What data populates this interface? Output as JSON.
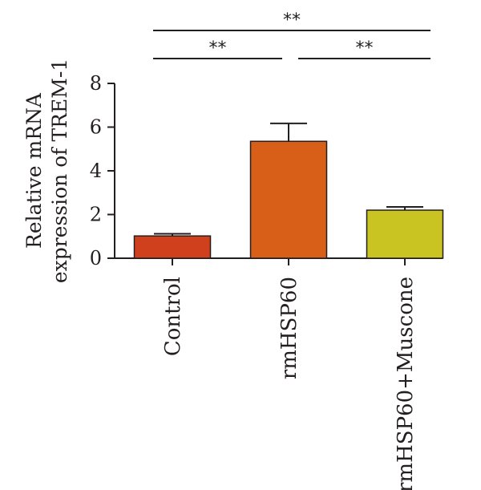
{
  "chart_data": {
    "type": "bar",
    "title": "",
    "xlabel": "",
    "ylabel": [
      "Relative mRNA",
      "expression of TREM-1"
    ],
    "ylim": [
      0,
      8
    ],
    "yticks": [
      0,
      2,
      4,
      6,
      8
    ],
    "grid": false,
    "categories": [
      "Control",
      "rmHSP60",
      "rmHSP60+Muscone"
    ],
    "values": [
      1.02,
      5.35,
      2.2
    ],
    "errors": [
      0.1,
      0.82,
      0.15
    ],
    "colors": [
      "#d0401c",
      "#d85f17",
      "#c9c422"
    ],
    "significance": [
      {
        "from": 1,
        "to": 2,
        "label": "**",
        "level": 2
      },
      {
        "from": 0,
        "to": 1,
        "label": "**",
        "level": 1
      },
      {
        "from": 1,
        "to": 2,
        "label": "**",
        "level": 1
      }
    ]
  }
}
